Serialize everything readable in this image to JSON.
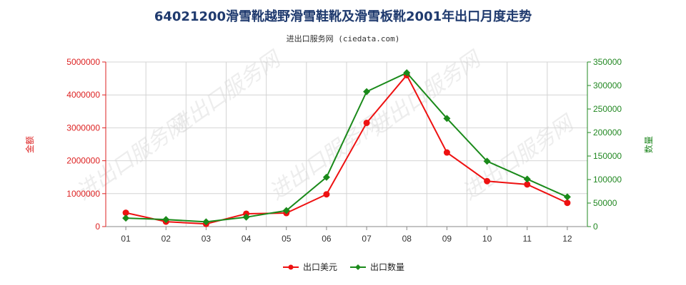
{
  "chart_data": {
    "type": "line",
    "title": "64021200滑雪靴越野滑雪鞋靴及滑雪板靴2001年出口月度走势",
    "subtitle": "进出口服务网 (ciedata.com)",
    "categories": [
      "01",
      "02",
      "03",
      "04",
      "05",
      "06",
      "07",
      "08",
      "09",
      "10",
      "11",
      "12"
    ],
    "y_left": {
      "label": "金额",
      "ylim": [
        0,
        5000000
      ],
      "ticks": [
        0,
        1000000,
        2000000,
        3000000,
        4000000,
        5000000
      ],
      "tick_labels": [
        "0",
        "1000000",
        "2000000",
        "3000000",
        "4000000",
        "5000000"
      ],
      "color": "#dd2222"
    },
    "y_right": {
      "label": "数量",
      "ylim": [
        0,
        350000
      ],
      "ticks": [
        0,
        50000,
        100000,
        150000,
        200000,
        250000,
        300000,
        350000
      ],
      "tick_labels": [
        "0",
        "50000",
        "100000",
        "150000",
        "200000",
        "250000",
        "300000",
        "350000"
      ],
      "color": "#228822"
    },
    "series": [
      {
        "name": "出口美元",
        "axis": "left",
        "color": "#ee1111",
        "marker": "circle",
        "values": [
          420000,
          150000,
          80000,
          390000,
          410000,
          980000,
          3150000,
          4600000,
          2250000,
          1380000,
          1280000,
          720000
        ]
      },
      {
        "name": "出口数量",
        "axis": "right",
        "color": "#1a8a1a",
        "marker": "diamond",
        "values": [
          18000,
          15000,
          10000,
          20000,
          34000,
          105000,
          287000,
          327000,
          230000,
          139000,
          101000,
          63000
        ]
      }
    ],
    "grid": true,
    "legend_position": "bottom-center"
  },
  "watermark_text": "进出口服务网"
}
